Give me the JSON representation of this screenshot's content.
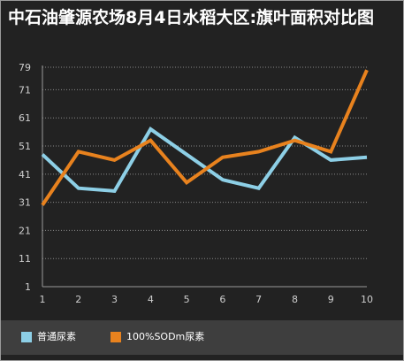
{
  "title": "中石油肇源农场8月4日水稻大区:旗叶面积对比图",
  "colors": {
    "background": "#222222",
    "legend_band": "#3e3e3e",
    "grid": "#8a8a8a",
    "axis": "#9a9a9a"
  },
  "chart_data": {
    "type": "line",
    "title": "中石油肇源农场8月4日水稻大区:旗叶面积对比图",
    "x": [
      1,
      2,
      3,
      4,
      5,
      6,
      7,
      8,
      9,
      10
    ],
    "y_ticks": [
      1,
      11,
      21,
      31,
      41,
      51,
      61,
      71,
      79
    ],
    "ylim": [
      1,
      79
    ],
    "grid": true,
    "legend_position": "bottom-left",
    "series": [
      {
        "name": "普通尿素",
        "color": "#8dcfe6",
        "values": [
          48,
          36,
          35,
          57,
          48,
          39,
          36,
          54,
          46,
          47
        ]
      },
      {
        "name": "100%SODm尿素",
        "color": "#e8821e",
        "values": [
          30,
          49,
          46,
          53,
          38,
          47,
          49,
          53,
          49,
          78
        ]
      }
    ]
  }
}
